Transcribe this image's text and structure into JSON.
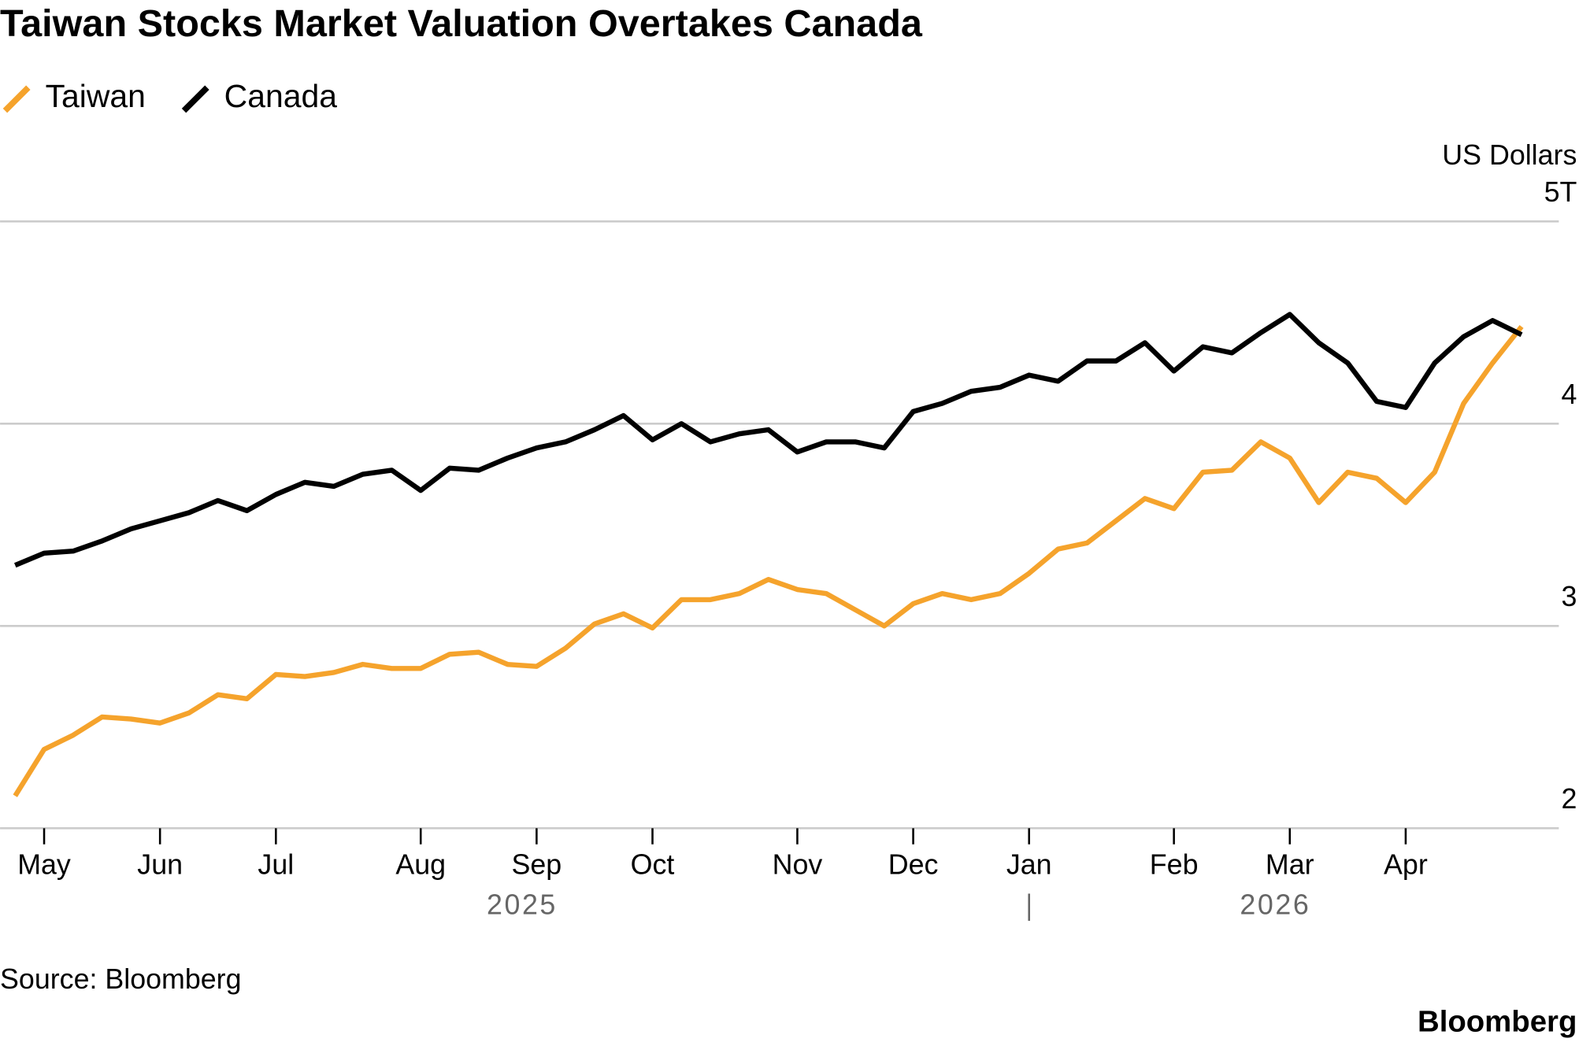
{
  "chart_data": {
    "type": "line",
    "title": "Taiwan Stocks Market Valuation Overtakes Canada",
    "y_axis_label": "US Dollars",
    "source": "Source: Bloomberg",
    "brand": "Bloomberg",
    "categories": [
      null,
      "May",
      null,
      null,
      null,
      "Jun",
      null,
      null,
      null,
      "Jul",
      null,
      null,
      null,
      null,
      "Aug",
      null,
      null,
      null,
      "Sep",
      null,
      null,
      null,
      "Oct",
      null,
      null,
      null,
      null,
      "Nov",
      null,
      null,
      null,
      "Dec",
      null,
      null,
      null,
      "Jan",
      null,
      null,
      null,
      null,
      "Feb",
      null,
      null,
      null,
      "Mar",
      null,
      null,
      null,
      "Apr",
      null,
      null,
      null,
      null
    ],
    "years": [
      "2025",
      "2026"
    ],
    "series": [
      {
        "name": "Taiwan",
        "color": "#f5a32c",
        "values": [
          2.16,
          2.39,
          2.46,
          2.55,
          2.54,
          2.52,
          2.57,
          2.66,
          2.64,
          2.76,
          2.75,
          2.77,
          2.81,
          2.79,
          2.79,
          2.86,
          2.87,
          2.81,
          2.8,
          2.89,
          3.01,
          3.06,
          2.99,
          3.13,
          3.13,
          3.16,
          3.23,
          3.18,
          3.16,
          3.08,
          3.0,
          3.11,
          3.16,
          3.13,
          3.16,
          3.26,
          3.38,
          3.41,
          3.52,
          3.63,
          3.58,
          3.76,
          3.77,
          3.91,
          3.83,
          3.61,
          3.76,
          3.73,
          3.61,
          3.76,
          4.1,
          4.3,
          4.48
        ]
      },
      {
        "name": "Canada",
        "color": "#000000",
        "values": [
          3.3,
          3.36,
          3.37,
          3.42,
          3.48,
          3.52,
          3.56,
          3.62,
          3.57,
          3.65,
          3.71,
          3.69,
          3.75,
          3.77,
          3.67,
          3.78,
          3.77,
          3.83,
          3.88,
          3.91,
          3.97,
          4.04,
          3.92,
          4.0,
          3.91,
          3.95,
          3.97,
          3.86,
          3.91,
          3.91,
          3.88,
          4.06,
          4.1,
          4.16,
          4.18,
          4.24,
          4.21,
          4.31,
          4.31,
          4.4,
          4.26,
          4.38,
          4.35,
          4.45,
          4.54,
          4.4,
          4.3,
          4.11,
          4.08,
          4.3,
          4.43,
          4.51,
          4.44
        ]
      }
    ],
    "ylim": [
      2,
      5
    ],
    "yticks": [
      2,
      3,
      4,
      {
        "value": 5,
        "label": "5T"
      }
    ],
    "grid": true
  }
}
